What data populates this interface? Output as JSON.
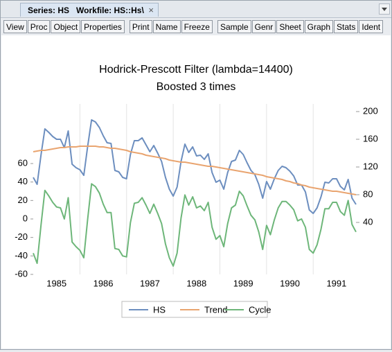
{
  "window": {
    "tab_title": "Series: HS   Workfile: HS::Hs\\",
    "close": "×"
  },
  "toolbar": {
    "groups": [
      [
        "View",
        "Proc",
        "Object",
        "Properties"
      ],
      [
        "Print",
        "Name",
        "Freeze"
      ],
      [
        "Sample",
        "Genr",
        "Sheet",
        "Graph",
        "Stats",
        "Ident"
      ]
    ]
  },
  "chart_data": {
    "type": "line",
    "title": "Hodrick-Prescott Filter (lambda=14400)",
    "subtitle": "Boosted 3 times",
    "x": [
      1985,
      1985.083,
      1985.167,
      1985.25,
      1985.333,
      1985.417,
      1985.5,
      1985.583,
      1985.667,
      1985.75,
      1985.833,
      1985.917,
      1986,
      1986.083,
      1986.167,
      1986.25,
      1986.333,
      1986.417,
      1986.5,
      1986.583,
      1986.667,
      1986.75,
      1986.833,
      1986.917,
      1987,
      1987.083,
      1987.167,
      1987.25,
      1987.333,
      1987.417,
      1987.5,
      1987.583,
      1987.667,
      1987.75,
      1987.833,
      1987.917,
      1988,
      1988.083,
      1988.167,
      1988.25,
      1988.333,
      1988.417,
      1988.5,
      1988.583,
      1988.667,
      1988.75,
      1988.833,
      1988.917,
      1989,
      1989.083,
      1989.167,
      1989.25,
      1989.333,
      1989.417,
      1989.5,
      1989.583,
      1989.667,
      1989.75,
      1989.833,
      1989.917,
      1990,
      1990.083,
      1990.167,
      1990.25,
      1990.333,
      1990.417,
      1990.5,
      1990.583,
      1990.667,
      1990.75,
      1990.833,
      1990.917,
      1991,
      1991.083,
      1991.167,
      1991.25,
      1991.333,
      1991.417,
      1991.5,
      1991.583,
      1991.667,
      1991.75,
      1991.833,
      1991.917
    ],
    "xlim": [
      1985,
      1991.917
    ],
    "xticks": [
      {
        "value": 1985.5,
        "label": "1985"
      },
      {
        "value": 1986.5,
        "label": "1986"
      },
      {
        "value": 1987.5,
        "label": "1987"
      },
      {
        "value": 1988.5,
        "label": "1988"
      },
      {
        "value": 1989.5,
        "label": "1989"
      },
      {
        "value": 1990.5,
        "label": "1990"
      },
      {
        "value": 1991.5,
        "label": "1991"
      }
    ],
    "ylim": [
      -60,
      120
    ],
    "yticks": [
      -60,
      -40,
      -20,
      0,
      20,
      40,
      60
    ],
    "y2lim": [
      -35,
      205
    ],
    "y2ticks": [
      40,
      80,
      120,
      160,
      200
    ],
    "legend": "bottom",
    "series": [
      {
        "name": "HS",
        "color": "#6c8ebf",
        "axis": "y2",
        "values": [
          105,
          95,
          138,
          175,
          170,
          164,
          160,
          160,
          148,
          172,
          124,
          119,
          116,
          108,
          150,
          188,
          185,
          177,
          165,
          155,
          154,
          115,
          113,
          105,
          103,
          138,
          158,
          158,
          162,
          152,
          142,
          151,
          140,
          128,
          105,
          88,
          78,
          91,
          128,
          153,
          141,
          149,
          136,
          137,
          131,
          139,
          112,
          98,
          101,
          88,
          112,
          128,
          130,
          144,
          138,
          126,
          115,
          109,
          95,
          75,
          99,
          88,
          103,
          115,
          121,
          119,
          114,
          107,
          94,
          94,
          84,
          58,
          53,
          61,
          77,
          98,
          97,
          103,
          103,
          92,
          87,
          102,
          75,
          66
        ]
      },
      {
        "name": "Trend",
        "color": "#e9a46f",
        "axis": "y2",
        "values": [
          142,
          143,
          144,
          144,
          145,
          146,
          147,
          148,
          148,
          149,
          149,
          149,
          150,
          150,
          150,
          150,
          150,
          149,
          149,
          148,
          147,
          147,
          146,
          145,
          144,
          142,
          141,
          140,
          139,
          137,
          136,
          135,
          134,
          133,
          132,
          130,
          129,
          128,
          127,
          127,
          126,
          125,
          124,
          123,
          122,
          121,
          121,
          120,
          119,
          118,
          117,
          116,
          115,
          114,
          113,
          112,
          111,
          110,
          109,
          108,
          106,
          105,
          104,
          103,
          102,
          100,
          99,
          97,
          96,
          94,
          93,
          91,
          90,
          89,
          88,
          87,
          86,
          85,
          85,
          84,
          83,
          82,
          81,
          80
        ]
      },
      {
        "name": "Cycle",
        "color": "#6db679",
        "values": [
          -37,
          -48,
          -6,
          31,
          25,
          18,
          13,
          12,
          0,
          23,
          -25,
          -30,
          -34,
          -42,
          0,
          38,
          35,
          28,
          16,
          7,
          7,
          -32,
          -33,
          -40,
          -41,
          -4,
          17,
          18,
          23,
          15,
          6,
          16,
          6,
          -5,
          -27,
          -42,
          -51,
          -37,
          1,
          26,
          15,
          24,
          12,
          14,
          9,
          18,
          -9,
          -22,
          -18,
          -30,
          -5,
          12,
          15,
          30,
          25,
          14,
          4,
          -1,
          -14,
          -33,
          -7,
          -17,
          -1,
          12,
          19,
          19,
          15,
          10,
          -2,
          0,
          -9,
          -33,
          -37,
          -28,
          -11,
          11,
          11,
          18,
          18,
          8,
          4,
          20,
          -6,
          -14
        ]
      }
    ]
  }
}
